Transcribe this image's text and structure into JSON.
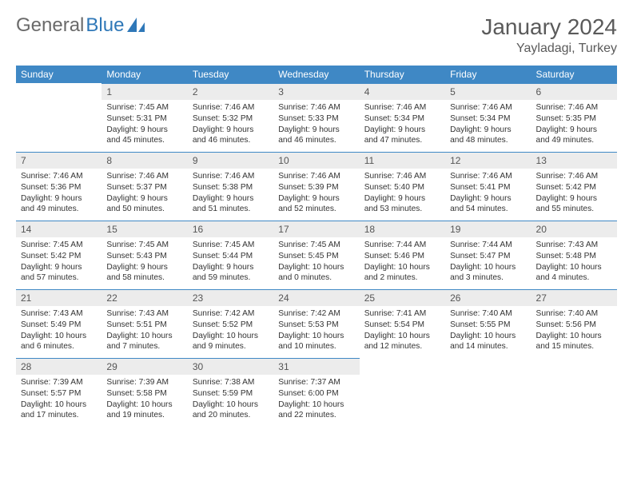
{
  "logo": {
    "text1": "General",
    "text2": "Blue"
  },
  "title": {
    "month": "January 2024",
    "location": "Yayladagi, Turkey"
  },
  "labels": {
    "sunrise": "Sunrise:",
    "sunset": "Sunset:",
    "daylight": "Daylight:"
  },
  "colors": {
    "header_bg": "#3f88c5",
    "header_text": "#ffffff",
    "daynum_bg": "#ececec",
    "daynum_border": "#3f88c5",
    "logo_gray": "#6a6a6a",
    "logo_blue": "#2f78b8",
    "body_text": "#333333"
  },
  "dayHeaders": [
    "Sunday",
    "Monday",
    "Tuesday",
    "Wednesday",
    "Thursday",
    "Friday",
    "Saturday"
  ],
  "firstDayOffset": 1,
  "days": [
    {
      "n": 1,
      "sunrise": "7:45 AM",
      "sunset": "5:31 PM",
      "daylight": "9 hours and 45 minutes."
    },
    {
      "n": 2,
      "sunrise": "7:46 AM",
      "sunset": "5:32 PM",
      "daylight": "9 hours and 46 minutes."
    },
    {
      "n": 3,
      "sunrise": "7:46 AM",
      "sunset": "5:33 PM",
      "daylight": "9 hours and 46 minutes."
    },
    {
      "n": 4,
      "sunrise": "7:46 AM",
      "sunset": "5:34 PM",
      "daylight": "9 hours and 47 minutes."
    },
    {
      "n": 5,
      "sunrise": "7:46 AM",
      "sunset": "5:34 PM",
      "daylight": "9 hours and 48 minutes."
    },
    {
      "n": 6,
      "sunrise": "7:46 AM",
      "sunset": "5:35 PM",
      "daylight": "9 hours and 49 minutes."
    },
    {
      "n": 7,
      "sunrise": "7:46 AM",
      "sunset": "5:36 PM",
      "daylight": "9 hours and 49 minutes."
    },
    {
      "n": 8,
      "sunrise": "7:46 AM",
      "sunset": "5:37 PM",
      "daylight": "9 hours and 50 minutes."
    },
    {
      "n": 9,
      "sunrise": "7:46 AM",
      "sunset": "5:38 PM",
      "daylight": "9 hours and 51 minutes."
    },
    {
      "n": 10,
      "sunrise": "7:46 AM",
      "sunset": "5:39 PM",
      "daylight": "9 hours and 52 minutes."
    },
    {
      "n": 11,
      "sunrise": "7:46 AM",
      "sunset": "5:40 PM",
      "daylight": "9 hours and 53 minutes."
    },
    {
      "n": 12,
      "sunrise": "7:46 AM",
      "sunset": "5:41 PM",
      "daylight": "9 hours and 54 minutes."
    },
    {
      "n": 13,
      "sunrise": "7:46 AM",
      "sunset": "5:42 PM",
      "daylight": "9 hours and 55 minutes."
    },
    {
      "n": 14,
      "sunrise": "7:45 AM",
      "sunset": "5:42 PM",
      "daylight": "9 hours and 57 minutes."
    },
    {
      "n": 15,
      "sunrise": "7:45 AM",
      "sunset": "5:43 PM",
      "daylight": "9 hours and 58 minutes."
    },
    {
      "n": 16,
      "sunrise": "7:45 AM",
      "sunset": "5:44 PM",
      "daylight": "9 hours and 59 minutes."
    },
    {
      "n": 17,
      "sunrise": "7:45 AM",
      "sunset": "5:45 PM",
      "daylight": "10 hours and 0 minutes."
    },
    {
      "n": 18,
      "sunrise": "7:44 AM",
      "sunset": "5:46 PM",
      "daylight": "10 hours and 2 minutes."
    },
    {
      "n": 19,
      "sunrise": "7:44 AM",
      "sunset": "5:47 PM",
      "daylight": "10 hours and 3 minutes."
    },
    {
      "n": 20,
      "sunrise": "7:43 AM",
      "sunset": "5:48 PM",
      "daylight": "10 hours and 4 minutes."
    },
    {
      "n": 21,
      "sunrise": "7:43 AM",
      "sunset": "5:49 PM",
      "daylight": "10 hours and 6 minutes."
    },
    {
      "n": 22,
      "sunrise": "7:43 AM",
      "sunset": "5:51 PM",
      "daylight": "10 hours and 7 minutes."
    },
    {
      "n": 23,
      "sunrise": "7:42 AM",
      "sunset": "5:52 PM",
      "daylight": "10 hours and 9 minutes."
    },
    {
      "n": 24,
      "sunrise": "7:42 AM",
      "sunset": "5:53 PM",
      "daylight": "10 hours and 10 minutes."
    },
    {
      "n": 25,
      "sunrise": "7:41 AM",
      "sunset": "5:54 PM",
      "daylight": "10 hours and 12 minutes."
    },
    {
      "n": 26,
      "sunrise": "7:40 AM",
      "sunset": "5:55 PM",
      "daylight": "10 hours and 14 minutes."
    },
    {
      "n": 27,
      "sunrise": "7:40 AM",
      "sunset": "5:56 PM",
      "daylight": "10 hours and 15 minutes."
    },
    {
      "n": 28,
      "sunrise": "7:39 AM",
      "sunset": "5:57 PM",
      "daylight": "10 hours and 17 minutes."
    },
    {
      "n": 29,
      "sunrise": "7:39 AM",
      "sunset": "5:58 PM",
      "daylight": "10 hours and 19 minutes."
    },
    {
      "n": 30,
      "sunrise": "7:38 AM",
      "sunset": "5:59 PM",
      "daylight": "10 hours and 20 minutes."
    },
    {
      "n": 31,
      "sunrise": "7:37 AM",
      "sunset": "6:00 PM",
      "daylight": "10 hours and 22 minutes."
    }
  ]
}
